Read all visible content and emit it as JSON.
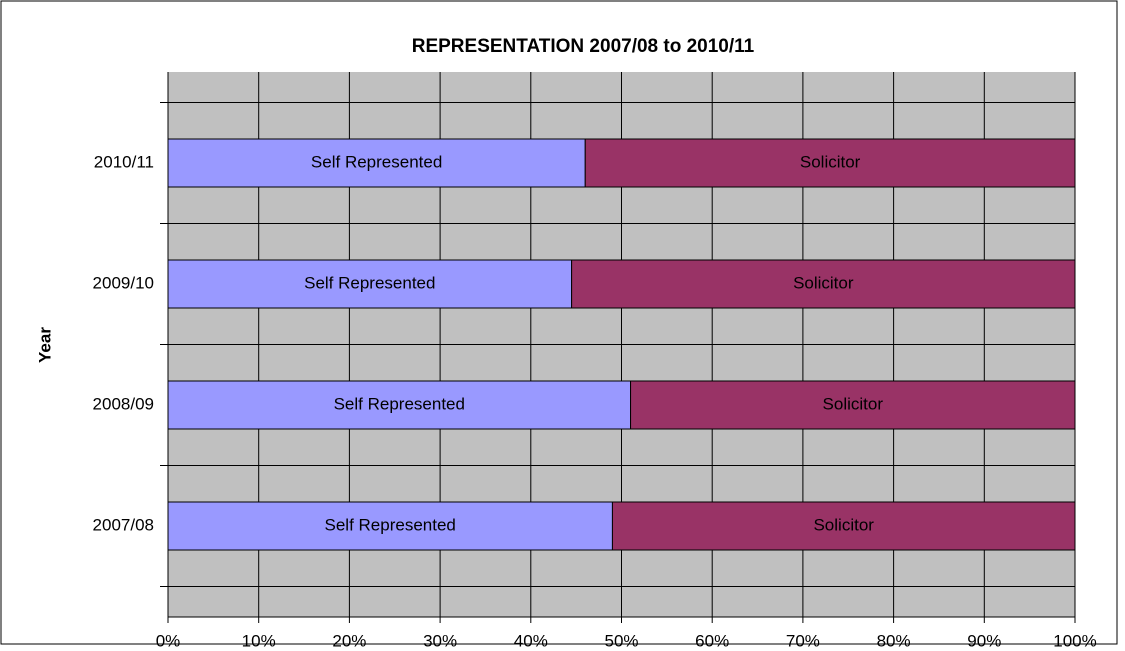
{
  "chart_data": {
    "type": "stacked_barh",
    "title": "REPRESENTATION 2007/08 to 2010/11",
    "y_label": "Year",
    "categories": [
      "2007/08",
      "2008/09",
      "2009/10",
      "2010/11"
    ],
    "series": [
      {
        "name": "Self Represented",
        "color": "#9999ff",
        "values": [
          49,
          51,
          44.5,
          46
        ]
      },
      {
        "name": "Solicitor",
        "color": "#993366",
        "values": [
          51,
          49,
          55.5,
          54
        ]
      }
    ],
    "xlim": [
      0,
      100
    ],
    "xticks": [
      {
        "value": 0,
        "label": "0%"
      },
      {
        "value": 10,
        "label": "10%"
      },
      {
        "value": 20,
        "label": "20%"
      },
      {
        "value": 30,
        "label": "30%"
      },
      {
        "value": 40,
        "label": "40%"
      },
      {
        "value": 50,
        "label": "50%"
      },
      {
        "value": 60,
        "label": "60%"
      },
      {
        "value": 70,
        "label": "70%"
      },
      {
        "value": 80,
        "label": "80%"
      },
      {
        "value": 90,
        "label": "90%"
      },
      {
        "value": 100,
        "label": "100%"
      }
    ],
    "grid": true
  }
}
